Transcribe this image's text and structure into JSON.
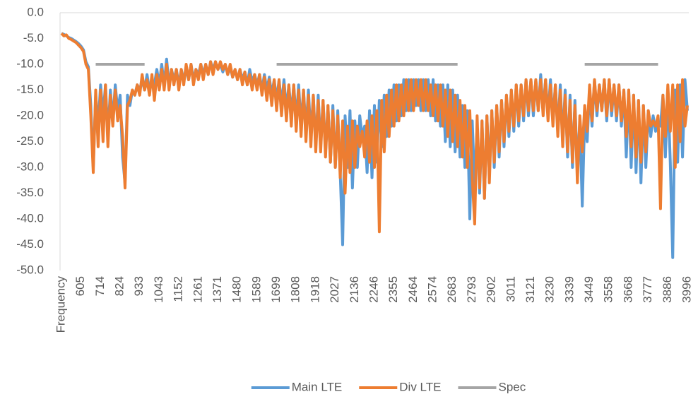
{
  "chart_data": {
    "type": "line",
    "categories": [
      "Frequency",
      null,
      null,
      null,
      null,
      null,
      null,
      null,
      605,
      null,
      null,
      null,
      null,
      null,
      null,
      null,
      714,
      null,
      null,
      null,
      null,
      null,
      null,
      null,
      824,
      null,
      null,
      null,
      null,
      null,
      null,
      null,
      933,
      null,
      null,
      null,
      null,
      null,
      null,
      null,
      1043,
      null,
      null,
      null,
      null,
      null,
      null,
      null,
      1152,
      null,
      null,
      null,
      null,
      null,
      null,
      null,
      1261,
      null,
      null,
      null,
      null,
      null,
      null,
      null,
      1371,
      null,
      null,
      null,
      null,
      null,
      null,
      null,
      1480,
      null,
      null,
      null,
      null,
      null,
      null,
      null,
      1589,
      null,
      null,
      null,
      null,
      null,
      null,
      null,
      1699,
      null,
      null,
      null,
      null,
      null,
      null,
      null,
      1808,
      null,
      null,
      null,
      null,
      null,
      null,
      null,
      1918,
      null,
      null,
      null,
      null,
      null,
      null,
      null,
      2027,
      null,
      null,
      null,
      null,
      null,
      null,
      null,
      2136,
      null,
      null,
      null,
      null,
      null,
      null,
      null,
      2246,
      null,
      null,
      null,
      null,
      null,
      null,
      null,
      2355,
      null,
      null,
      null,
      null,
      null,
      null,
      null,
      2464,
      null,
      null,
      null,
      null,
      null,
      null,
      null,
      2574,
      null,
      null,
      null,
      null,
      null,
      null,
      null,
      2683,
      null,
      null,
      null,
      null,
      null,
      null,
      null,
      2793,
      null,
      null,
      null,
      null,
      null,
      null,
      null,
      2902,
      null,
      null,
      null,
      null,
      null,
      null,
      null,
      3011,
      null,
      null,
      null,
      null,
      null,
      null,
      null,
      3121,
      null,
      null,
      null,
      null,
      null,
      null,
      null,
      3230,
      null,
      null,
      null,
      null,
      null,
      null,
      null,
      3339,
      null,
      null,
      null,
      null,
      null,
      null,
      null,
      3449,
      null,
      null,
      null,
      null,
      null,
      null,
      null,
      3558,
      null,
      null,
      null,
      null,
      null,
      null,
      null,
      3668,
      null,
      null,
      null,
      null,
      null,
      null,
      null,
      3777,
      null,
      null,
      null,
      null,
      null,
      null,
      null,
      3886,
      null,
      null,
      null,
      null,
      null,
      null,
      null,
      3996
    ],
    "series": [
      {
        "name": "Main LTE",
        "color": "#5b9bd5",
        "values": [
          -4,
          -4.2,
          -4.5,
          -4.8,
          -5,
          -5.3,
          -5.6,
          -6,
          -6.5,
          -7.2,
          -9.5,
          -10.5,
          -18,
          -30,
          -16,
          -22,
          -14,
          -20,
          -14,
          -24,
          -15,
          -21,
          -14,
          -19,
          -16,
          -28,
          -33,
          -16,
          -18,
          -15,
          -16,
          -14,
          -15,
          -13,
          -15,
          -12,
          -15,
          -13,
          -14,
          -11,
          -14,
          -10,
          -14,
          -9,
          -14,
          -11,
          -13,
          -11,
          -14,
          -11,
          -13,
          -11,
          -13,
          -10,
          -13,
          -11,
          -12,
          -10,
          -12,
          -10,
          -12,
          -9.5,
          -11,
          -9.5,
          -11,
          -10,
          -11.5,
          -10,
          -12,
          -10.5,
          -12.5,
          -11,
          -13,
          -11,
          -13,
          -11.5,
          -14,
          -11,
          -13.5,
          -12,
          -14,
          -12,
          -15,
          -12,
          -15,
          -12.5,
          -16,
          -13,
          -17,
          -13,
          -18,
          -13,
          -19,
          -14,
          -20,
          -14,
          -21,
          -14,
          -22,
          -15,
          -23,
          -15,
          -24,
          -16,
          -26,
          -16,
          -26,
          -17,
          -27,
          -18,
          -29,
          -18,
          -30,
          -19,
          -31,
          -45,
          -20,
          -30,
          -19,
          -34,
          -21,
          -30,
          -20,
          -24,
          -22,
          -31,
          -19,
          -32,
          -18,
          -29,
          -17,
          -26,
          -16,
          -24,
          -15,
          -22,
          -14,
          -21,
          -14,
          -20,
          -13,
          -19,
          -13,
          -19,
          -13,
          -18,
          -13,
          -19,
          -13,
          -19,
          -13,
          -20,
          -13,
          -21,
          -14,
          -22,
          -14,
          -25,
          -14,
          -26,
          -15,
          -27,
          -16,
          -28,
          -18,
          -30,
          -19,
          -40,
          -21,
          -34,
          -22,
          -35,
          -21,
          -36,
          -20,
          -31,
          -19,
          -30,
          -18,
          -28,
          -17,
          -26,
          -16,
          -24,
          -15,
          -23,
          -14,
          -22,
          -14,
          -21,
          -13,
          -20,
          -13,
          -20,
          -13,
          -19,
          -12,
          -19,
          -13,
          -20,
          -13,
          -21,
          -14,
          -23,
          -14,
          -25,
          -15,
          -28,
          -16,
          -30,
          -17,
          -31,
          -21,
          -37.5,
          -20,
          -25,
          -15,
          -22,
          -13,
          -20,
          -14,
          -19,
          -13,
          -21,
          -13,
          -20,
          -14,
          -21,
          -14,
          -22,
          -15,
          -28,
          -15,
          -30,
          -16,
          -31,
          -17,
          -33,
          -18,
          -30,
          -19,
          -24,
          -20,
          -23,
          -21,
          -22,
          -16,
          -28,
          -15,
          -29,
          -47.5,
          -15,
          -29,
          -14,
          -28,
          -13,
          -19
        ]
      },
      {
        "name": "Div LTE",
        "color": "#ed7d31",
        "values": [
          -4,
          -4.5,
          -4.3,
          -5,
          -5.2,
          -5.5,
          -5.8,
          -6.3,
          -6.8,
          -7.5,
          -10,
          -11,
          -20,
          -31,
          -15,
          -26,
          -15,
          -25,
          -14,
          -26,
          -16,
          -22,
          -15,
          -21,
          -18,
          -24,
          -34,
          -18,
          -17,
          -15,
          -16,
          -14,
          -16,
          -12,
          -15,
          -13,
          -16,
          -12,
          -17,
          -12,
          -15,
          -11,
          -15,
          -10,
          -15,
          -11,
          -14,
          -11,
          -15,
          -11,
          -14,
          -10,
          -13,
          -10,
          -14,
          -11,
          -13,
          -10,
          -13,
          -10,
          -12,
          -9.5,
          -12,
          -9.5,
          -11,
          -9.5,
          -11,
          -10,
          -12,
          -10,
          -12.5,
          -11,
          -13,
          -11,
          -14,
          -11.5,
          -14,
          -12,
          -15,
          -12,
          -15,
          -12,
          -16,
          -12.5,
          -17,
          -13,
          -18,
          -13,
          -19,
          -13,
          -20,
          -14,
          -21,
          -14,
          -22,
          -14,
          -23,
          -15,
          -24,
          -15,
          -25,
          -16,
          -26,
          -16,
          -27,
          -17,
          -27,
          -17,
          -28,
          -18,
          -29,
          -19,
          -30,
          -20,
          -32,
          -21,
          -35,
          -22,
          -31,
          -21,
          -30,
          -22,
          -26,
          -23,
          -28,
          -21,
          -29,
          -20,
          -30,
          -19,
          -42.5,
          -17,
          -27,
          -16,
          -24,
          -15,
          -22,
          -14,
          -21,
          -14,
          -20,
          -13,
          -19,
          -13,
          -19,
          -13,
          -18,
          -13,
          -19,
          -13,
          -19,
          -14,
          -20,
          -14,
          -21,
          -14,
          -22,
          -15,
          -24,
          -15,
          -25,
          -16,
          -26,
          -17,
          -28,
          -18,
          -30,
          -19,
          -32,
          -41,
          -20,
          -34,
          -21,
          -36,
          -20,
          -33,
          -19,
          -29,
          -18,
          -27,
          -17,
          -25,
          -16,
          -23,
          -15,
          -22,
          -14,
          -21,
          -14,
          -20,
          -13,
          -19,
          -13,
          -19,
          -13,
          -19,
          -13,
          -20,
          -13,
          -21,
          -14,
          -22,
          -14,
          -24,
          -15,
          -26,
          -16,
          -27,
          -17,
          -29,
          -18,
          -33,
          -20,
          -27,
          -18,
          -23,
          -14,
          -21,
          -13,
          -19,
          -14,
          -19,
          -13,
          -20,
          -13,
          -19,
          -14,
          -20,
          -14,
          -21,
          -15,
          -24,
          -15,
          -26,
          -16,
          -28,
          -17,
          -29,
          -18,
          -27,
          -19,
          -22,
          -21,
          -22,
          -20,
          -38,
          -16,
          -24,
          -14,
          -23,
          -14,
          -30,
          -14,
          -25,
          -13,
          -22,
          -18
        ]
      },
      {
        "name": "Spec",
        "color": "#a5a5a5",
        "values": [
          null,
          null,
          null,
          null,
          null,
          null,
          null,
          null,
          null,
          null,
          null,
          null,
          null,
          null,
          -10,
          -10,
          -10,
          -10,
          -10,
          -10,
          -10,
          -10,
          -10,
          -10,
          -10,
          -10,
          -10,
          -10,
          -10,
          -10,
          -10,
          -10,
          -10,
          -10,
          -10,
          null,
          null,
          null,
          null,
          null,
          null,
          null,
          null,
          null,
          null,
          null,
          null,
          null,
          null,
          null,
          null,
          null,
          null,
          null,
          null,
          null,
          null,
          null,
          null,
          null,
          null,
          null,
          null,
          null,
          null,
          null,
          null,
          null,
          null,
          null,
          null,
          null,
          null,
          null,
          null,
          null,
          null,
          null,
          null,
          null,
          null,
          null,
          null,
          null,
          null,
          null,
          null,
          null,
          -10,
          -10,
          -10,
          -10,
          -10,
          -10,
          -10,
          -10,
          -10,
          -10,
          -10,
          -10,
          -10,
          -10,
          -10,
          -10,
          -10,
          -10,
          -10,
          -10,
          -10,
          -10,
          -10,
          -10,
          -10,
          -10,
          -10,
          -10,
          -10,
          -10,
          -10,
          -10,
          -10,
          -10,
          -10,
          -10,
          -10,
          -10,
          -10,
          -10,
          -10,
          -10,
          -10,
          -10,
          -10,
          -10,
          -10,
          -10,
          -10,
          -10,
          -10,
          -10,
          -10,
          -10,
          -10,
          -10,
          -10,
          -10,
          -10,
          -10,
          -10,
          -10,
          -10,
          -10,
          -10,
          -10,
          -10,
          -10,
          -10,
          -10,
          -10,
          -10,
          -10,
          -10,
          -10,
          null,
          null,
          null,
          null,
          null,
          null,
          null,
          null,
          null,
          null,
          null,
          null,
          null,
          null,
          null,
          null,
          null,
          null,
          null,
          null,
          null,
          null,
          null,
          null,
          null,
          null,
          null,
          null,
          null,
          null,
          null,
          null,
          null,
          null,
          null,
          null,
          null,
          null,
          null,
          null,
          null,
          null,
          null,
          null,
          null,
          null,
          null,
          null,
          null,
          null,
          null,
          -10,
          -10,
          -10,
          -10,
          -10,
          -10,
          -10,
          -10,
          -10,
          -10,
          -10,
          -10,
          -10,
          -10,
          -10,
          -10,
          -10,
          -10,
          -10,
          -10,
          -10,
          -10,
          -10,
          -10,
          -10,
          -10,
          -10,
          -10,
          -10,
          -10,
          -10,
          null,
          null,
          null,
          null,
          null,
          null,
          null,
          null,
          null,
          null,
          null,
          null
        ]
      }
    ],
    "ylim": [
      -50,
      0
    ],
    "yticks": [
      {
        "value": -50,
        "label": "-50.0"
      },
      {
        "value": -45,
        "label": "-45.0"
      },
      {
        "value": -40,
        "label": "-40.0"
      },
      {
        "value": -35,
        "label": "-35.0"
      },
      {
        "value": -30,
        "label": "-30.0"
      },
      {
        "value": -25,
        "label": "-25.0"
      },
      {
        "value": -20,
        "label": "-20.0"
      },
      {
        "value": -15,
        "label": "-15.0"
      },
      {
        "value": -10,
        "label": "-10.0"
      },
      {
        "value": -5,
        "label": "-5.0"
      },
      {
        "value": 0,
        "label": "0.0"
      }
    ],
    "grid": false,
    "legend": "bottom"
  }
}
